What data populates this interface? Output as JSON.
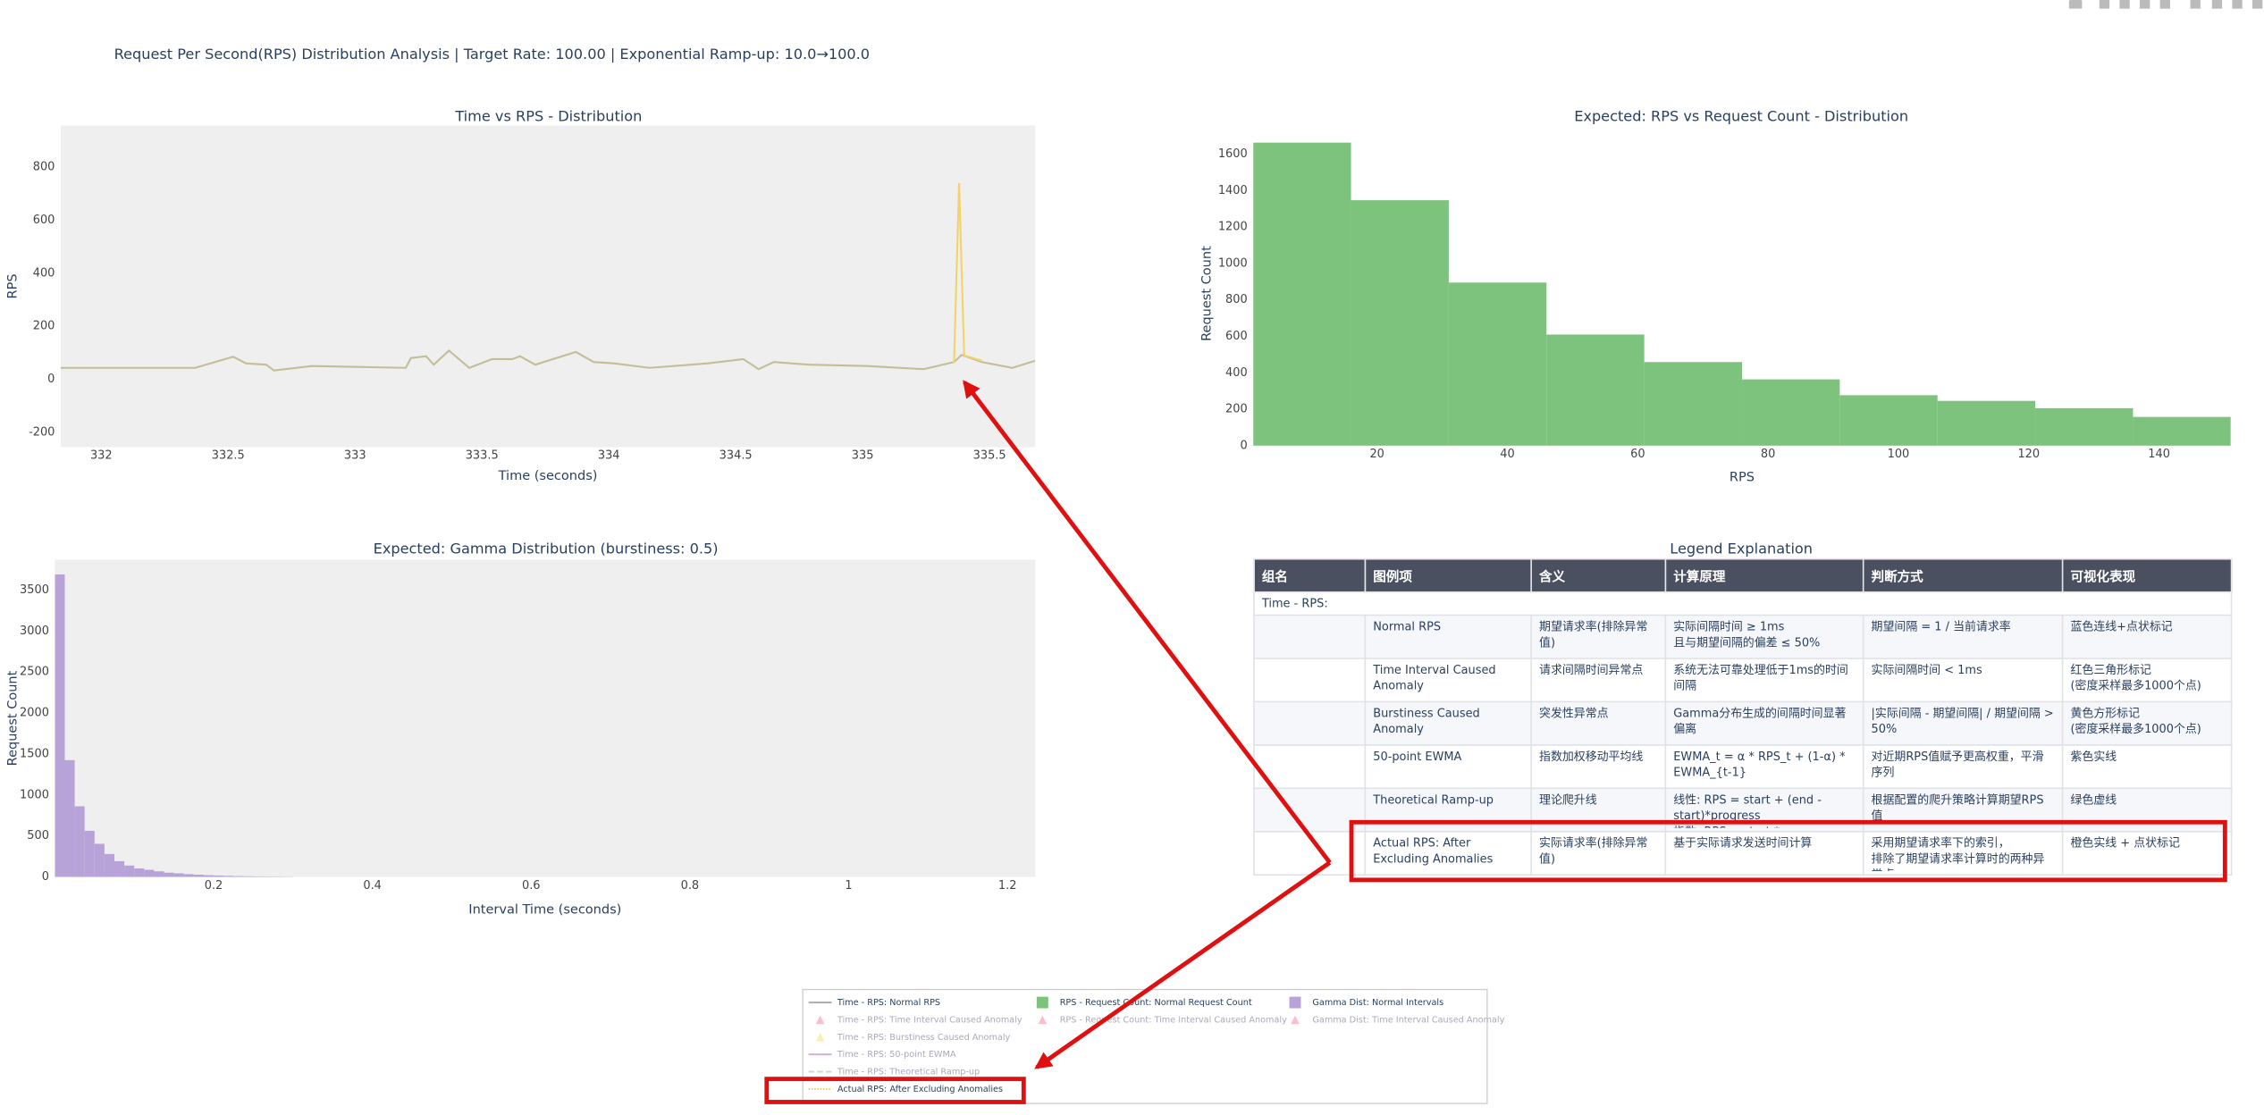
{
  "page_title": "Request Per Second(RPS) Distribution Analysis | Target Rate: 100.00 | Exponential Ramp-up: 10.0→100.0",
  "chart_data": [
    {
      "type": "line",
      "title": "Time vs RPS - Distribution",
      "x_label": "Time (seconds)",
      "y_label": "RPS",
      "xlim": [
        331.84,
        335.68
      ],
      "ylim": [
        -256,
        957
      ],
      "xticks": [
        332,
        332.5,
        333,
        333.5,
        334,
        334.5,
        335,
        335.5
      ],
      "yticks": [
        -200,
        0,
        200,
        400,
        600,
        800
      ],
      "plot_bgcolor": "#efefef",
      "series": [
        {
          "name": "Time - RPS: Normal RPS",
          "color": "#c2bf98",
          "x": [
            331.84,
            332.17,
            332.37,
            332.52,
            332.57,
            332.65,
            332.68,
            332.83,
            333.2,
            333.22,
            333.28,
            333.31,
            333.37,
            333.45,
            333.54,
            333.62,
            333.65,
            333.71,
            333.87,
            333.94,
            334.02,
            334.16,
            334.39,
            334.53,
            334.59,
            334.65,
            334.79,
            335.02,
            335.24,
            335.36,
            335.39,
            335.47,
            335.59,
            335.68
          ],
          "values": [
            43,
            43,
            43,
            85,
            60,
            55,
            33,
            50,
            43,
            80,
            87,
            55,
            108,
            43,
            76,
            76,
            87,
            55,
            103,
            65,
            60,
            43,
            60,
            76,
            38,
            65,
            55,
            50,
            38,
            65,
            92,
            65,
            43,
            70
          ]
        },
        {
          "name": "Actual RPS: After Excluding Anomalies",
          "color": "#f2d36b",
          "x": [
            335.36,
            335.38,
            335.4,
            335.47
          ],
          "values": [
            60,
            740,
            90,
            70
          ]
        }
      ]
    },
    {
      "type": "histogram",
      "title": "Expected: RPS vs Request Count - Distribution",
      "x_label": "RPS",
      "y_label": "Request Count",
      "xlim": [
        1,
        151
      ],
      "ylim": [
        0,
        1670
      ],
      "xticks": [
        20,
        40,
        60,
        80,
        100,
        120,
        140
      ],
      "yticks": [
        0,
        200,
        400,
        600,
        800,
        1000,
        1200,
        1400,
        1600
      ],
      "plot_bgcolor": "#ffffff",
      "color": "#7dc27d",
      "bins": [
        1,
        16,
        31,
        46,
        61,
        76,
        91,
        106,
        121,
        136,
        151
      ],
      "values": [
        1663,
        1347,
        895,
        610,
        459,
        364,
        277,
        246,
        206,
        158
      ]
    },
    {
      "type": "histogram",
      "title": "Expected: Gamma Distribution (burstiness: 0.5)",
      "x_label": "Interval Time (seconds)",
      "y_label": "Request Count",
      "xlim": [
        0,
        1.235
      ],
      "ylim": [
        0,
        3870
      ],
      "xticks": [
        0.2,
        0.4,
        0.6,
        0.8,
        1,
        1.2
      ],
      "yticks": [
        0,
        500,
        1000,
        1500,
        2000,
        2500,
        3000,
        3500
      ],
      "plot_bgcolor": "#efefef",
      "color": "#b7a3d8",
      "bins": [
        0,
        0.0125,
        0.025,
        0.0375,
        0.05,
        0.0625,
        0.075,
        0.0875,
        0.1,
        0.1125,
        0.125,
        0.1375,
        0.15,
        0.1625,
        0.175,
        0.1875,
        0.2,
        0.2125,
        0.225,
        0.2375,
        0.25,
        0.2625,
        0.275,
        0.2875,
        0.3
      ],
      "values": [
        3690,
        1425,
        862,
        563,
        405,
        281,
        193,
        140,
        105,
        88,
        70,
        53,
        45,
        35,
        28,
        22,
        18,
        14,
        11,
        9,
        7,
        6,
        5,
        4
      ]
    }
  ],
  "table": {
    "title": "Legend Explanation",
    "headers": [
      "组名",
      "图例项",
      "含义",
      "计算原理",
      "判断方式",
      "可视化表现"
    ],
    "group": "Time - RPS:",
    "rows": [
      [
        "Normal RPS",
        "期望请求率(排除异常值)",
        "实际间隔时间 ≥ 1ms\n且与期望间隔的偏差 ≤ 50%",
        "期望间隔 = 1 / 当前请求率",
        "蓝色连线+点状标记"
      ],
      [
        "Time Interval Caused Anomaly",
        "请求间隔时间异常点",
        "系统无法可靠处理低于1ms的时间间隔",
        "实际间隔时间 < 1ms",
        "红色三角形标记\n(密度采样最多1000个点)"
      ],
      [
        "Burstiness Caused Anomaly",
        "突发性异常点",
        "Gamma分布生成的间隔时间显著偏离",
        "|实际间隔 - 期望间隔| / 期望间隔 > 50%",
        "黄色方形标记\n(密度采样最多1000个点)"
      ],
      [
        "50-point EWMA",
        "指数加权移动平均线",
        "EWMA_t = α * RPS_t + (1-α) * EWMA_{t-1}",
        "对近期RPS值赋予更高权重，平滑序列",
        "紫色实线"
      ],
      [
        "Theoretical Ramp-up",
        "理论爬升线",
        "线性: RPS = start + (end - start)*progress\n指数: RPS = start * (ratio^progress)",
        "根据配置的爬升策略计算期望RPS值",
        "绿色虚线"
      ],
      [
        "Actual RPS: After Excluding Anomalies",
        "实际请求率(排除异常值)",
        "基于实际请求发送时间计算",
        "采用期望请求率下的索引，\n排除了期望请求率计算时的两种异常点",
        "橙色实线 + 点状标记"
      ]
    ]
  },
  "legend": {
    "items": [
      {
        "name": "Time - RPS: Normal RPS",
        "color": "#b0b0b0",
        "symbol": "line",
        "visible": true
      },
      {
        "name": "Time - RPS: Time Interval Caused Anomaly",
        "color": "#ff6b8a",
        "symbol": "triangle",
        "visible": false
      },
      {
        "name": "Time - RPS: Burstiness Caused Anomaly",
        "color": "#f5e050",
        "symbol": "triangle",
        "visible": false
      },
      {
        "name": "Time - RPS: 50-point EWMA",
        "color": "#9b59b6",
        "symbol": "line",
        "visible": false
      },
      {
        "name": "Time - RPS: Theoretical Ramp-up",
        "color": "#7dc27d",
        "symbol": "dash",
        "visible": false
      },
      {
        "name": "Actual RPS: After Excluding Anomalies",
        "color": "#f0c040",
        "symbol": "dot",
        "visible": true
      },
      {
        "name": "RPS - Request Count: Normal Request Count",
        "color": "#7dc27d",
        "symbol": "square",
        "visible": true
      },
      {
        "name": "RPS - Request Count: Time Interval Caused Anomaly",
        "color": "#ff6b8a",
        "symbol": "triangle",
        "visible": false
      },
      {
        "name": "Gamma Dist: Normal Intervals",
        "color": "#b7a3d8",
        "symbol": "square",
        "visible": true
      },
      {
        "name": "Gamma Dist: Time Interval Caused Anomaly",
        "color": "#ff6b8a",
        "symbol": "triangle",
        "visible": false
      }
    ]
  }
}
